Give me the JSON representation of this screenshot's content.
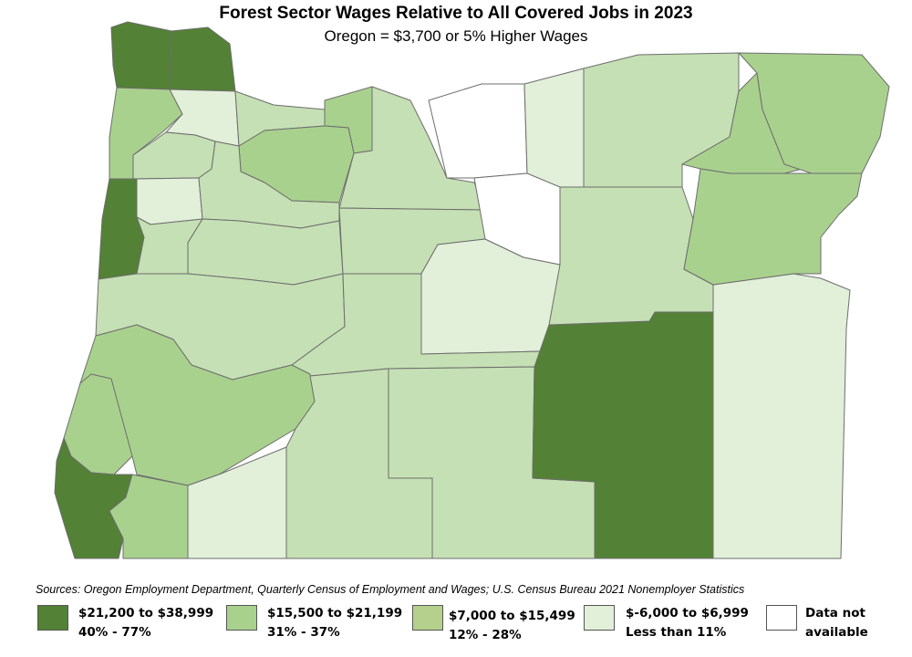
{
  "title": "Forest Sector Wages Relative to All Covered Jobs in 2023",
  "subtitle": "Oregon = $3,700 or 5% Higher Wages",
  "source": "Sources: Oregon Employment Department, Quarterly Census of Employment and Wages; U.S. Census Bureau 2021 Nonemployer Statistics",
  "colors": {
    "dark": "#538135",
    "medium": "#a9d18e",
    "olive": "#b5cf8c",
    "light": "#c5e0b4",
    "pale": "#e2efd9",
    "none": "#ffffff"
  },
  "legend": [
    {
      "line1": "$21,200 to $38,999",
      "line2": "40% - 77%",
      "color": "#538135"
    },
    {
      "line1": "$15,500 to $21,199",
      "line2": "31% - 37%",
      "color": "#a9d18e"
    },
    {
      "line1": "$7,000 to $15,499",
      "line2": "12% - 28%",
      "color": "#b5cf8c"
    },
    {
      "line1": "$-6,000 to $6,999",
      "line2": "Less than 11%",
      "color": "#e2efd9"
    },
    {
      "line1": "Data not",
      "line2": "available",
      "color": "#ffffff"
    }
  ]
}
